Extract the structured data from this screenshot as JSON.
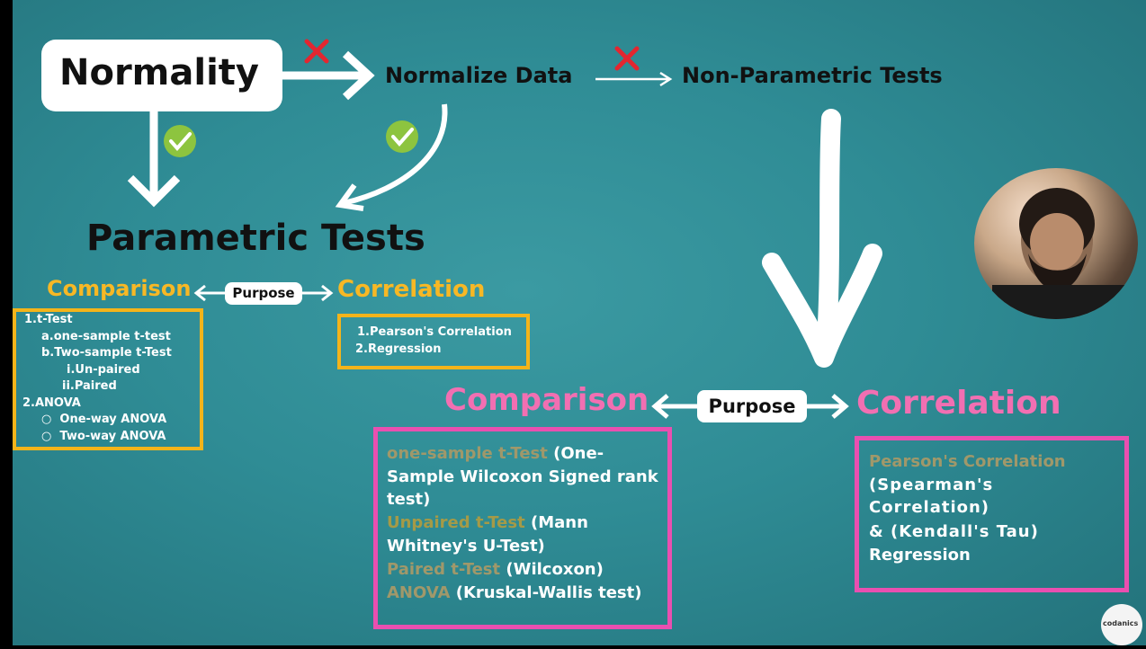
{
  "top": {
    "normality": "Normality",
    "normalize": "Normalize Data",
    "nonparam": "Non-Parametric Tests",
    "parametric": "Parametric Tests"
  },
  "param": {
    "comparison": "Comparison",
    "purpose": "Purpose",
    "correlation": "Correlation",
    "comp_items": [
      "1.t-Test",
      "a.one-sample t-test",
      "b.Two-sample t-Test",
      "i.Un-paired",
      "ii.Paired",
      "2.ANOVA",
      "One-way ANOVA",
      "Two-way ANOVA"
    ],
    "corr_items": [
      "1.Pearson's Correlation",
      "2.Regression"
    ]
  },
  "nonparam": {
    "comparison": "Comparison",
    "purpose": "Purpose",
    "correlation": "Correlation",
    "lines": {
      "l1a": "one-sample t-Test",
      "l1b": " (One-",
      "l2": "Sample Wilcoxon Signed rank",
      "l3": "test)",
      "l4a": "Unpaired t-Test",
      "l4b": " (Mann",
      "l5": "Whitney's U-Test)",
      "l6a": "Paired t-Test",
      "l6b": " (Wilcoxon)",
      "l7a": "ANOVA",
      "l7b": " (Kruskal-Wallis test)"
    },
    "corr": {
      "pearson": "Pearson's Correlation",
      "spearman1": "(Spearman's",
      "spearman2": "Correlation)",
      "kendall": "& (Kendall's Tau)",
      "regression": "Regression"
    }
  },
  "logo_text": "codanics",
  "colors": {
    "background": "#2f8c95",
    "yellow": "#f7b825",
    "pink": "#f26fb2",
    "check": "#8dc43f",
    "cross": "#e32630"
  },
  "icons": [
    "check-icon",
    "cross-icon",
    "arrow-icon",
    "webcam-video",
    "codanics-logo"
  ]
}
